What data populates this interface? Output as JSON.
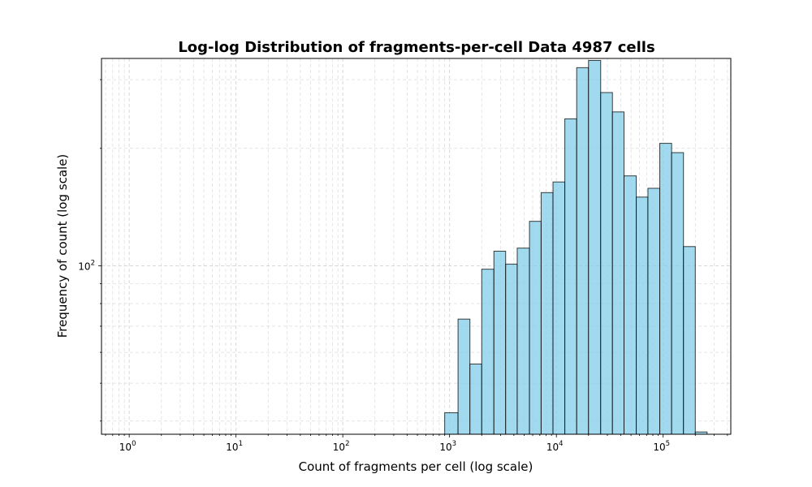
{
  "chart_data": {
    "type": "bar",
    "title": "Log-log Distribution of fragments-per-cell Data 4987 cells",
    "xlabel": "Count of fragments per cell (log scale)",
    "ylabel": "Frequency of count (log scale)",
    "x_scale": "log",
    "y_scale": "log",
    "xlim": [
      0.55,
      430000
    ],
    "ylim": [
      37,
      340
    ],
    "x_ticks": [
      {
        "base": "10",
        "exp": "0",
        "value": 1
      },
      {
        "base": "10",
        "exp": "1",
        "value": 10
      },
      {
        "base": "10",
        "exp": "2",
        "value": 100
      },
      {
        "base": "10",
        "exp": "3",
        "value": 1000
      },
      {
        "base": "10",
        "exp": "4",
        "value": 10000
      },
      {
        "base": "10",
        "exp": "5",
        "value": 100000
      }
    ],
    "y_ticks": [
      {
        "base": "10",
        "exp": "2",
        "value": 100
      }
    ],
    "grid": "both (major and minor, dashed)",
    "bar_color": "#87CEEB",
    "bar_edge_color": "#000000",
    "bins": [
      {
        "x0": 900,
        "x1": 1200,
        "count": 42
      },
      {
        "x0": 1200,
        "x1": 1550,
        "count": 73
      },
      {
        "x0": 1550,
        "x1": 2000,
        "count": 56
      },
      {
        "x0": 2000,
        "x1": 2600,
        "count": 98
      },
      {
        "x0": 2600,
        "x1": 3350,
        "count": 109
      },
      {
        "x0": 3350,
        "x1": 4300,
        "count": 101
      },
      {
        "x0": 4300,
        "x1": 5600,
        "count": 111
      },
      {
        "x0": 5600,
        "x1": 7200,
        "count": 130
      },
      {
        "x0": 7200,
        "x1": 9300,
        "count": 154
      },
      {
        "x0": 9300,
        "x1": 12000,
        "count": 164
      },
      {
        "x0": 12000,
        "x1": 15500,
        "count": 238
      },
      {
        "x0": 15500,
        "x1": 20000,
        "count": 322
      },
      {
        "x0": 20000,
        "x1": 26000,
        "count": 336
      },
      {
        "x0": 26000,
        "x1": 33500,
        "count": 278
      },
      {
        "x0": 33500,
        "x1": 43000,
        "count": 248
      },
      {
        "x0": 43000,
        "x1": 56000,
        "count": 170
      },
      {
        "x0": 56000,
        "x1": 72000,
        "count": 150
      },
      {
        "x0": 72000,
        "x1": 93000,
        "count": 158
      },
      {
        "x0": 93000,
        "x1": 120000,
        "count": 206
      },
      {
        "x0": 120000,
        "x1": 155000,
        "count": 195
      },
      {
        "x0": 155000,
        "x1": 200000,
        "count": 112
      },
      {
        "x0": 200000,
        "x1": 258000,
        "count": 37.5
      }
    ]
  }
}
